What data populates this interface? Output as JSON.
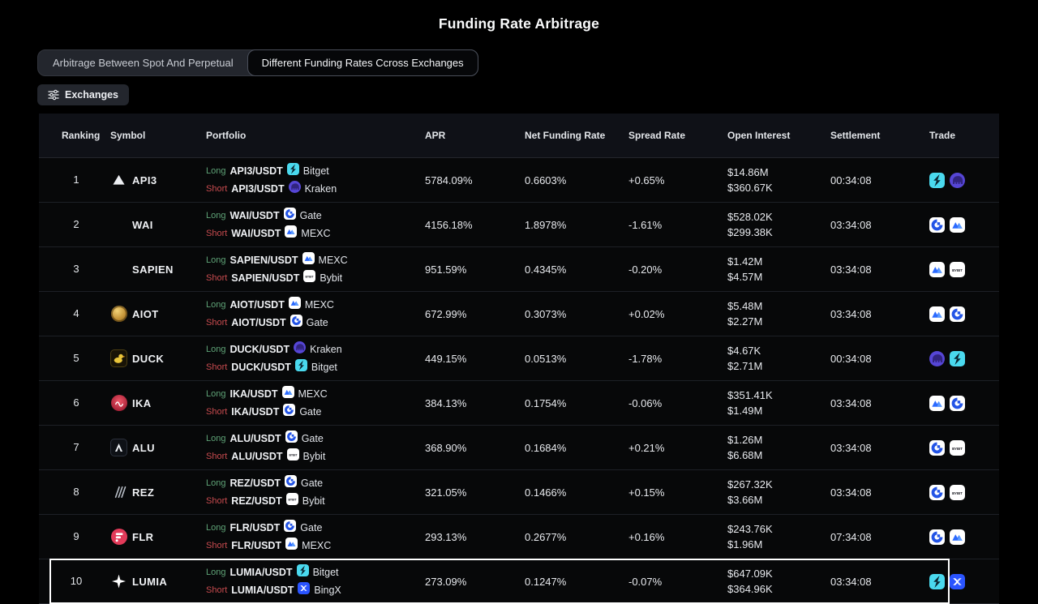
{
  "page": {
    "title": "Funding Rate Arbitrage"
  },
  "tabs": [
    {
      "label": "Arbitrage Between Spot And Perpetual",
      "active": false
    },
    {
      "label": "Different Funding Rates Ccross Exchanges",
      "active": true
    }
  ],
  "toolbar": {
    "exchanges_label": "Exchanges"
  },
  "colors": {
    "long_text": "#5fa377",
    "short_text": "#c84b4f",
    "bitget_brand": "#4ad9ee",
    "kraken_brand": "#5646d6",
    "gate_brand": "#2354e6",
    "mexc_brand": "#2b6aff",
    "bingx_brand": "#2a54ff",
    "highlight_border": "#ffffff"
  },
  "table": {
    "columns": [
      "Ranking",
      "Symbol",
      "Portfolio",
      "APR",
      "Net Funding Rate",
      "Spread Rate",
      "Open Interest",
      "Settlement",
      "Trade"
    ],
    "rows": [
      {
        "ranking": "1",
        "symbol": "API3",
        "coin_icon": "api3-icon",
        "long": {
          "label": "Long",
          "pair": "API3/USDT",
          "exchange": "Bitget",
          "icon": "bitget-icon"
        },
        "short": {
          "label": "Short",
          "pair": "API3/USDT",
          "exchange": "Kraken",
          "icon": "kraken-icon"
        },
        "apr": "5784.09%",
        "net_funding_rate": "0.6603%",
        "spread_rate": "+0.65%",
        "open_interest": [
          "$14.86M",
          "$360.67K"
        ],
        "settlement": "00:34:08",
        "trade_icons": [
          "bitget-icon",
          "kraken-icon"
        ],
        "highlighted": false
      },
      {
        "ranking": "2",
        "symbol": "WAI",
        "coin_icon": null,
        "long": {
          "label": "Long",
          "pair": "WAI/USDT",
          "exchange": "Gate",
          "icon": "gate-icon"
        },
        "short": {
          "label": "Short",
          "pair": "WAI/USDT",
          "exchange": "MEXC",
          "icon": "mexc-icon"
        },
        "apr": "4156.18%",
        "net_funding_rate": "1.8978%",
        "spread_rate": "-1.61%",
        "open_interest": [
          "$528.02K",
          "$299.38K"
        ],
        "settlement": "03:34:08",
        "trade_icons": [
          "gate-icon",
          "mexc-icon"
        ],
        "highlighted": false
      },
      {
        "ranking": "3",
        "symbol": "SAPIEN",
        "coin_icon": null,
        "long": {
          "label": "Long",
          "pair": "SAPIEN/USDT",
          "exchange": "MEXC",
          "icon": "mexc-icon"
        },
        "short": {
          "label": "Short",
          "pair": "SAPIEN/USDT",
          "exchange": "Bybit",
          "icon": "bybit-icon"
        },
        "apr": "951.59%",
        "net_funding_rate": "0.4345%",
        "spread_rate": "-0.20%",
        "open_interest": [
          "$1.42M",
          "$4.57M"
        ],
        "settlement": "03:34:08",
        "trade_icons": [
          "mexc-icon",
          "bybit-icon"
        ],
        "highlighted": false
      },
      {
        "ranking": "4",
        "symbol": "AIOT",
        "coin_icon": "aiot-icon",
        "long": {
          "label": "Long",
          "pair": "AIOT/USDT",
          "exchange": "MEXC",
          "icon": "mexc-icon"
        },
        "short": {
          "label": "Short",
          "pair": "AIOT/USDT",
          "exchange": "Gate",
          "icon": "gate-icon"
        },
        "apr": "672.99%",
        "net_funding_rate": "0.3073%",
        "spread_rate": "+0.02%",
        "open_interest": [
          "$5.48M",
          "$2.27M"
        ],
        "settlement": "03:34:08",
        "trade_icons": [
          "mexc-icon",
          "gate-icon"
        ],
        "highlighted": false
      },
      {
        "ranking": "5",
        "symbol": "DUCK",
        "coin_icon": "duck-icon",
        "long": {
          "label": "Long",
          "pair": "DUCK/USDT",
          "exchange": "Kraken",
          "icon": "kraken-icon"
        },
        "short": {
          "label": "Short",
          "pair": "DUCK/USDT",
          "exchange": "Bitget",
          "icon": "bitget-icon"
        },
        "apr": "449.15%",
        "net_funding_rate": "0.0513%",
        "spread_rate": "-1.78%",
        "open_interest": [
          "$4.67K",
          "$2.71M"
        ],
        "settlement": "00:34:08",
        "trade_icons": [
          "kraken-icon",
          "bitget-icon"
        ],
        "highlighted": false
      },
      {
        "ranking": "6",
        "symbol": "IKA",
        "coin_icon": "ika-icon",
        "long": {
          "label": "Long",
          "pair": "IKA/USDT",
          "exchange": "MEXC",
          "icon": "mexc-icon"
        },
        "short": {
          "label": "Short",
          "pair": "IKA/USDT",
          "exchange": "Gate",
          "icon": "gate-icon"
        },
        "apr": "384.13%",
        "net_funding_rate": "0.1754%",
        "spread_rate": "-0.06%",
        "open_interest": [
          "$351.41K",
          "$1.49M"
        ],
        "settlement": "03:34:08",
        "trade_icons": [
          "mexc-icon",
          "gate-icon"
        ],
        "highlighted": false
      },
      {
        "ranking": "7",
        "symbol": "ALU",
        "coin_icon": "alu-icon",
        "long": {
          "label": "Long",
          "pair": "ALU/USDT",
          "exchange": "Gate",
          "icon": "gate-icon"
        },
        "short": {
          "label": "Short",
          "pair": "ALU/USDT",
          "exchange": "Bybit",
          "icon": "bybit-icon"
        },
        "apr": "368.90%",
        "net_funding_rate": "0.1684%",
        "spread_rate": "+0.21%",
        "open_interest": [
          "$1.26M",
          "$6.68M"
        ],
        "settlement": "03:34:08",
        "trade_icons": [
          "gate-icon",
          "bybit-icon"
        ],
        "highlighted": false
      },
      {
        "ranking": "8",
        "symbol": "REZ",
        "coin_icon": "rez-icon",
        "long": {
          "label": "Long",
          "pair": "REZ/USDT",
          "exchange": "Gate",
          "icon": "gate-icon"
        },
        "short": {
          "label": "Short",
          "pair": "REZ/USDT",
          "exchange": "Bybit",
          "icon": "bybit-icon"
        },
        "apr": "321.05%",
        "net_funding_rate": "0.1466%",
        "spread_rate": "+0.15%",
        "open_interest": [
          "$267.32K",
          "$3.66M"
        ],
        "settlement": "03:34:08",
        "trade_icons": [
          "gate-icon",
          "bybit-icon"
        ],
        "highlighted": false
      },
      {
        "ranking": "9",
        "symbol": "FLR",
        "coin_icon": "flr-icon",
        "long": {
          "label": "Long",
          "pair": "FLR/USDT",
          "exchange": "Gate",
          "icon": "gate-icon"
        },
        "short": {
          "label": "Short",
          "pair": "FLR/USDT",
          "exchange": "MEXC",
          "icon": "mexc-icon"
        },
        "apr": "293.13%",
        "net_funding_rate": "0.2677%",
        "spread_rate": "+0.16%",
        "open_interest": [
          "$243.76K",
          "$1.96M"
        ],
        "settlement": "07:34:08",
        "trade_icons": [
          "gate-icon",
          "mexc-icon"
        ],
        "highlighted": false
      },
      {
        "ranking": "10",
        "symbol": "LUMIA",
        "coin_icon": "lumia-icon",
        "long": {
          "label": "Long",
          "pair": "LUMIA/USDT",
          "exchange": "Bitget",
          "icon": "bitget-icon"
        },
        "short": {
          "label": "Short",
          "pair": "LUMIA/USDT",
          "exchange": "BingX",
          "icon": "bingx-icon"
        },
        "apr": "273.09%",
        "net_funding_rate": "0.1247%",
        "spread_rate": "-0.07%",
        "open_interest": [
          "$647.09K",
          "$364.96K"
        ],
        "settlement": "03:34:08",
        "trade_icons": [
          "bitget-icon",
          "bingx-icon"
        ],
        "highlighted": true
      }
    ]
  }
}
